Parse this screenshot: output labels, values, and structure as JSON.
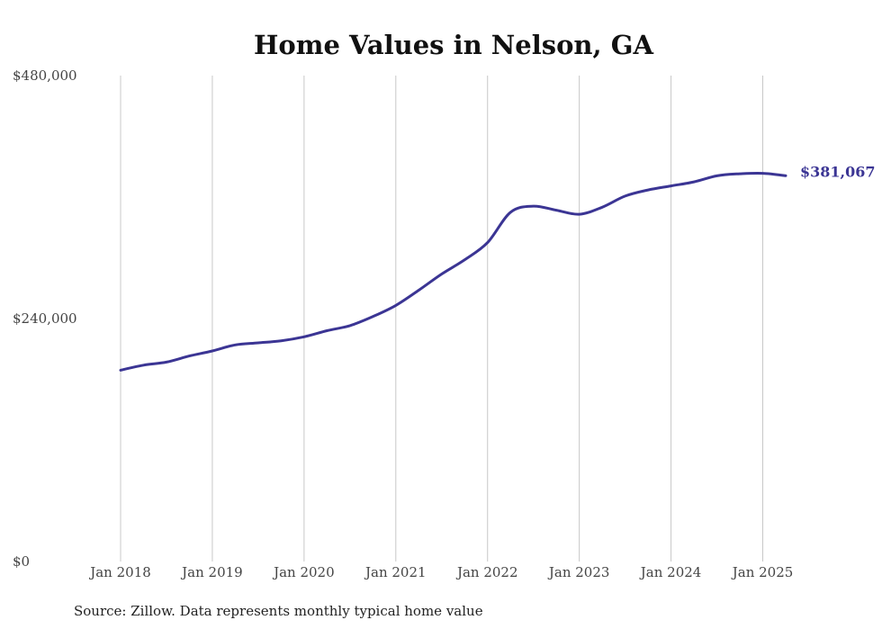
{
  "chart_data": {
    "type": "line",
    "title": "Home Values in Nelson, GA",
    "xlabel": "",
    "ylabel": "",
    "ylim": [
      0,
      480000
    ],
    "xlim": [
      "2018-01",
      "2025-04"
    ],
    "y_ticks": [
      {
        "value": 0,
        "label": "$0"
      },
      {
        "value": 240000,
        "label": "$240,000"
      },
      {
        "value": 480000,
        "label": "$480,000"
      }
    ],
    "x_ticks": [
      {
        "value": "2018-01",
        "label": "Jan 2018"
      },
      {
        "value": "2019-01",
        "label": "Jan 2019"
      },
      {
        "value": "2020-01",
        "label": "Jan 2020"
      },
      {
        "value": "2021-01",
        "label": "Jan 2021"
      },
      {
        "value": "2022-01",
        "label": "Jan 2022"
      },
      {
        "value": "2023-01",
        "label": "Jan 2023"
      },
      {
        "value": "2024-01",
        "label": "Jan 2024"
      },
      {
        "value": "2025-01",
        "label": "Jan 2025"
      }
    ],
    "grid": "vertical",
    "legend": "none",
    "line_color": "#3b3594",
    "series": [
      {
        "x": [
          "2018-01",
          "2018-04",
          "2018-07",
          "2018-10",
          "2019-01",
          "2019-04",
          "2019-07",
          "2019-10",
          "2020-01",
          "2020-04",
          "2020-07",
          "2020-10",
          "2021-01",
          "2021-04",
          "2021-07",
          "2021-10",
          "2022-01",
          "2022-04",
          "2022-07",
          "2022-10",
          "2023-01",
          "2023-04",
          "2023-07",
          "2023-10",
          "2024-01",
          "2024-04",
          "2024-07",
          "2024-10",
          "2025-01",
          "2025-04"
        ],
        "values": [
          189000,
          194000,
          197000,
          203000,
          208000,
          214000,
          216000,
          218000,
          222000,
          228000,
          233000,
          242000,
          253000,
          268000,
          284000,
          298000,
          315000,
          345000,
          351000,
          347000,
          343000,
          350000,
          361000,
          367000,
          371000,
          375000,
          381000,
          383000,
          383500,
          381067
        ]
      }
    ],
    "end_label": "$381,067",
    "source": "Source: Zillow. Data represents monthly typical home value"
  }
}
